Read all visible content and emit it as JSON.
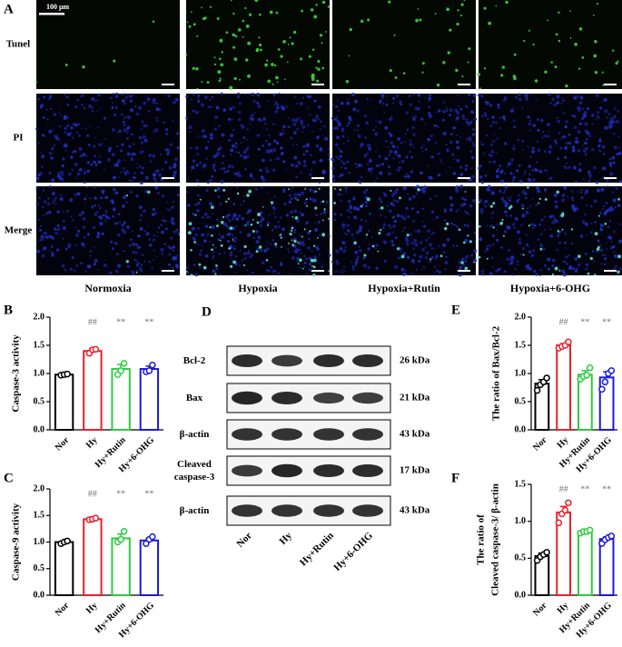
{
  "panel_a": {
    "label": "A",
    "scale_bar": "100 μm",
    "rows": [
      "Tunel",
      "PI",
      "Merge"
    ],
    "columns": [
      "Normoxia",
      "Hypoxia",
      "Hypoxia+Rutin",
      "Hypoxia+6-OHG"
    ]
  },
  "panel_d": {
    "label": "D",
    "lanes": [
      "Nor",
      "Hy",
      "Hy+Rutin",
      "Hy+6-OHG"
    ],
    "blots": [
      {
        "label": [
          "Bcl-2"
        ],
        "size": "26 kDa"
      },
      {
        "label": [
          "Bax"
        ],
        "size": "21 kDa"
      },
      {
        "label": [
          "β-actin"
        ],
        "size": "43 kDa"
      },
      {
        "label": [
          "Cleaved",
          "caspase-3"
        ],
        "size": "17 kDa"
      },
      {
        "label": [
          "β-actin"
        ],
        "size": "43 kDa"
      }
    ]
  },
  "chart_data": [
    {
      "type": "bar",
      "panel": "B",
      "ylabel": [
        "Caspase-3 activity"
      ],
      "categories": [
        "Nor",
        "Hy",
        "Hy+Rutin",
        "Hy+6-OHG"
      ],
      "colors": [
        "#000000",
        "#e8212b",
        "#2ecc40",
        "#1a1adb"
      ],
      "values": [
        0.98,
        1.4,
        1.08,
        1.08
      ],
      "errors": [
        0.01,
        0.04,
        0.08,
        0.05
      ],
      "points": [
        [
          0.97,
          0.98,
          0.99
        ],
        [
          1.36,
          1.42,
          1.43
        ],
        [
          0.98,
          1.05,
          1.18
        ],
        [
          1.03,
          1.05,
          1.15
        ]
      ],
      "annotations": [
        null,
        "##",
        "**",
        "**"
      ],
      "ylim": [
        0,
        2.0
      ],
      "yticks": [
        {
          "value": 0,
          "label": "0.0"
        },
        0.5,
        {
          "value": 1,
          "label": "1.0"
        },
        1.5,
        {
          "value": 2,
          "label": "2.0"
        }
      ]
    },
    {
      "type": "bar",
      "panel": "C",
      "ylabel": [
        "Caspase-9 activity"
      ],
      "categories": [
        "Nor",
        "Hy",
        "Hy+Rutin",
        "Hy+6-OHG"
      ],
      "colors": [
        "#000000",
        "#e8212b",
        "#2ecc40",
        "#1a1adb"
      ],
      "values": [
        1.0,
        1.43,
        1.07,
        1.03
      ],
      "errors": [
        0.01,
        0.02,
        0.08,
        0.04
      ],
      "points": [
        [
          0.97,
          1.0,
          1.02
        ],
        [
          1.42,
          1.43,
          1.45
        ],
        [
          1.0,
          1.05,
          1.2
        ],
        [
          0.97,
          1.05,
          1.1
        ]
      ],
      "annotations": [
        null,
        "##",
        "**",
        "**"
      ],
      "ylim": [
        0,
        2.0
      ],
      "yticks": [
        {
          "value": 0,
          "label": "0.0"
        },
        0.5,
        {
          "value": 1,
          "label": "1.0"
        },
        1.5,
        {
          "value": 2,
          "label": "2.0"
        }
      ]
    },
    {
      "type": "bar",
      "panel": "E",
      "ylabel": [
        "The ratio of Bax/Bcl-2"
      ],
      "categories": [
        "Nor",
        "Hy",
        "Hy+Rutin",
        "Hy+6-OHG"
      ],
      "colors": [
        "#000000",
        "#e8212b",
        "#2ecc40",
        "#1a1adb"
      ],
      "values": [
        0.82,
        1.5,
        0.98,
        0.93
      ],
      "errors": [
        0.07,
        0.03,
        0.07,
        0.1
      ],
      "points": [
        [
          0.7,
          0.8,
          0.85,
          0.92
        ],
        [
          1.45,
          1.48,
          1.5,
          1.56
        ],
        [
          0.9,
          0.95,
          0.97,
          1.1
        ],
        [
          0.72,
          0.85,
          1.0,
          1.05
        ]
      ],
      "annotations": [
        null,
        "##",
        "**",
        "**"
      ],
      "ylim": [
        0,
        2.0
      ],
      "yticks": [
        {
          "value": 0,
          "label": "0.0"
        },
        0.5,
        {
          "value": 1,
          "label": "1.0"
        },
        1.5,
        {
          "value": 2,
          "label": "2.0"
        }
      ]
    },
    {
      "type": "bar",
      "panel": "F",
      "ylabel": [
        "The ratio of",
        "Cleaved caspase-3/ β-actin"
      ],
      "categories": [
        "Nor",
        "Hy",
        "Hy+Rutin",
        "Hy+6-OHG"
      ],
      "colors": [
        "#000000",
        "#e8212b",
        "#2ecc40",
        "#1a1adb"
      ],
      "values": [
        0.53,
        1.12,
        0.86,
        0.76
      ],
      "errors": [
        0.04,
        0.08,
        0.02,
        0.03
      ],
      "points": [
        [
          0.47,
          0.52,
          0.55,
          0.58
        ],
        [
          0.98,
          1.1,
          1.15,
          1.25
        ],
        [
          0.84,
          0.86,
          0.86,
          0.88
        ],
        [
          0.7,
          0.75,
          0.78,
          0.8
        ]
      ],
      "annotations": [
        null,
        "##",
        "**",
        "**"
      ],
      "ylim": [
        0,
        1.5
      ],
      "yticks": [
        {
          "value": 0,
          "label": "0.0"
        },
        0.5,
        {
          "value": 1,
          "label": "1.0"
        },
        1.5
      ]
    }
  ]
}
